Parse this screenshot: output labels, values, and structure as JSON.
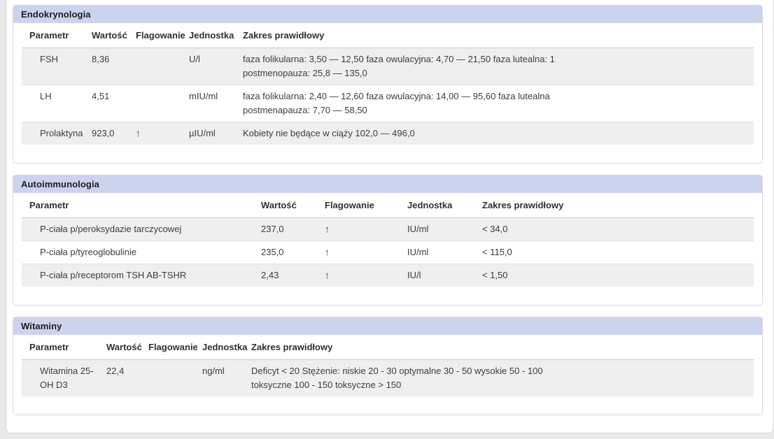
{
  "panel": {
    "type": "lab-results-report"
  },
  "colors": {
    "page_bg": "#e9e9e9",
    "section_header_bg": "#ccd3ee",
    "row_stripe": "#efefef",
    "card_border": "#d8d8d8",
    "flag_color": "#1c1c1c"
  },
  "flag_icon": "up-arrow",
  "sections": [
    {
      "title": "Endokrynologia",
      "columns": [
        "Parametr",
        "Wartość",
        "Flagowanie",
        "Jednostka",
        "Zakres prawidłowy"
      ],
      "rows": [
        {
          "parametr": "FSH",
          "wartosc": "8,36",
          "flagowanie": "",
          "jednostka": "U/l",
          "zakres": "faza folikularna: 3,50 — 12,50 faza owulacyjna: 4,70 — 21,50 faza lutealna: 1\npostmenopauza: 25,8 — 135,0"
        },
        {
          "parametr": "LH",
          "wartosc": "4,51",
          "flagowanie": "",
          "jednostka": "mIU/ml",
          "zakres": "faza folikularna: 2,40 — 12,60 faza owulacyjna: 14,00 — 95,60 faza lutealna\npostmenapauza: 7,70 — 58,50"
        },
        {
          "parametr": "Prolaktyna",
          "wartosc": "923,0",
          "flagowanie": "↑",
          "jednostka": "µIU/ml",
          "zakres": "Kobiety nie będące w ciąży 102,0 — 496,0"
        }
      ]
    },
    {
      "title": "Autoimmunologia",
      "columns": [
        "Parametr",
        "Wartość",
        "Flagowanie",
        "Jednostka",
        "Zakres prawidłowy"
      ],
      "rows": [
        {
          "parametr": "P-ciała p/peroksydazie tarczycowej",
          "wartosc": "237,0",
          "flagowanie": "↑",
          "jednostka": "IU/ml",
          "zakres": "< 34,0"
        },
        {
          "parametr": "P-ciała p/tyreoglobulinie",
          "wartosc": "235,0",
          "flagowanie": "↑",
          "jednostka": "IU/ml",
          "zakres": "< 115,0"
        },
        {
          "parametr": "P-ciała p/receptorom TSH AB-TSHR",
          "wartosc": "2,43",
          "flagowanie": "↑",
          "jednostka": "IU/l",
          "zakres": "< 1,50"
        }
      ]
    },
    {
      "title": "Witaminy",
      "columns": [
        "Parametr",
        "Wartość",
        "Flagowanie",
        "Jednostka",
        "Zakres prawidłowy"
      ],
      "rows": [
        {
          "parametr": "Witamina 25-\nOH D3",
          "wartosc": "22,4",
          "flagowanie": "",
          "jednostka": "ng/ml",
          "zakres": "Deficyt < 20 Stężenie: niskie 20 - 30 optymalne 30 - 50 wysokie 50 - 100\ntoksyczne 100 - 150 toksyczne > 150"
        }
      ]
    }
  ]
}
